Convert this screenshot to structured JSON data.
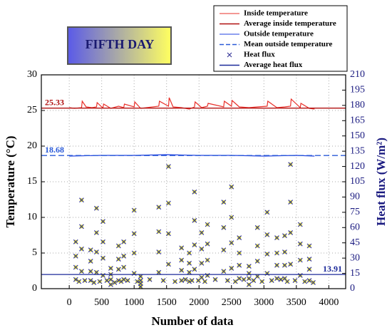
{
  "chart_data": {
    "type": "line",
    "annotation": "FIFTH DAY",
    "x_label": "Number of data",
    "y_label": "Temperature (°C)",
    "y2_label": "Heat flux (W/m²)",
    "xlim": [
      -430,
      4260
    ],
    "xticks": [
      0,
      500,
      1000,
      1500,
      2000,
      2500,
      3000,
      3500,
      4000
    ],
    "ylim": [
      0,
      30
    ],
    "yticks": [
      0,
      5,
      10,
      15,
      20,
      25,
      30
    ],
    "y2lim": [
      0,
      210
    ],
    "y2ticks": [
      0,
      15,
      30,
      45,
      60,
      75,
      90,
      105,
      120,
      135,
      150,
      165,
      180,
      195,
      210
    ],
    "grid": true,
    "legend": "top-right",
    "series": [
      {
        "name": "Inside temperature",
        "color": "#e8302a",
        "style": "line",
        "x": [
          0,
          80,
          190,
          200,
          260,
          350,
          420,
          430,
          500,
          520,
          530,
          640,
          760,
          840,
          850,
          1000,
          1010,
          1100,
          1380,
          1390,
          1530,
          1540,
          1600,
          1730,
          1850,
          1930,
          1940,
          2040,
          2130,
          2140,
          2380,
          2390,
          2500,
          2510,
          2620,
          2770,
          2900,
          3050,
          3060,
          3200,
          3320,
          3410,
          3420,
          3560,
          3570,
          3700,
          3780
        ],
        "values": [
          25.4,
          25.3,
          25.4,
          26.3,
          25.5,
          25.4,
          25.5,
          26.1,
          25.5,
          25.4,
          25.9,
          25.3,
          25.6,
          25.4,
          25.9,
          25.5,
          26.2,
          25.3,
          25.6,
          26.3,
          25.6,
          26.8,
          25.5,
          25.4,
          25.2,
          25.5,
          26.2,
          25.4,
          25.6,
          26.0,
          25.5,
          26.3,
          25.6,
          26.4,
          25.5,
          25.4,
          25.5,
          25.6,
          26.3,
          25.4,
          25.5,
          25.6,
          26.6,
          25.4,
          26.0,
          25.3,
          25.2
        ]
      },
      {
        "name": "Average inside temperature",
        "color": "#b01010",
        "style": "hline",
        "value": 25.33
      },
      {
        "name": "Outside temperature",
        "color": "#2040e0",
        "style": "line",
        "x": [
          0,
          500,
          1000,
          1500,
          2000,
          2500,
          3000,
          3500,
          3780
        ],
        "values": [
          18.6,
          18.7,
          18.7,
          18.8,
          18.7,
          18.7,
          18.6,
          18.7,
          18.6
        ]
      },
      {
        "name": "Mean outside temperature",
        "color": "#2a5ad8",
        "style": "dashed-hline",
        "value": 18.68
      },
      {
        "name": "Heat flux",
        "color": "#3a3a9a",
        "marker_fill": "#f0f000",
        "style": "marker",
        "axis": "y2",
        "x": [
          100,
          100,
          100,
          100,
          150,
          190,
          190,
          190,
          190,
          240,
          330,
          330,
          330,
          330,
          380,
          420,
          420,
          420,
          420,
          470,
          520,
          520,
          520,
          520,
          580,
          640,
          640,
          640,
          640,
          700,
          760,
          760,
          760,
          760,
          800,
          840,
          840,
          840,
          840,
          900,
          1000,
          1000,
          1000,
          1000,
          1050,
          1100,
          1100,
          1100,
          1100,
          1240,
          1380,
          1380,
          1380,
          1380,
          1450,
          1530,
          1530,
          1530,
          1530,
          1630,
          1730,
          1730,
          1730,
          1730,
          1790,
          1850,
          1850,
          1850,
          1850,
          1890,
          1930,
          1930,
          1930,
          1930,
          1990,
          2040,
          2040,
          2040,
          2040,
          2090,
          2130,
          2130,
          2130,
          2130,
          2250,
          2380,
          2380,
          2380,
          2380,
          2440,
          2500,
          2500,
          2500,
          2500,
          2560,
          2620,
          2620,
          2620,
          2620,
          2690,
          2770,
          2770,
          2770,
          2770,
          2840,
          2900,
          2900,
          2900,
          2900,
          2970,
          3050,
          3050,
          3050,
          3050,
          3120,
          3200,
          3200,
          3200,
          3200,
          3260,
          3320,
          3320,
          3320,
          3320,
          3360,
          3410,
          3410,
          3410,
          3410,
          3480,
          3560,
          3560,
          3560,
          3560,
          3630,
          3700,
          3700,
          3700,
          3700,
          3760
        ],
        "values": [
          46,
          32,
          21,
          9,
          7,
          87,
          61,
          39,
          17,
          8,
          38,
          27,
          17,
          8,
          6,
          79,
          55,
          36,
          16,
          7,
          66,
          46,
          30,
          13,
          8,
          20,
          14,
          9,
          4,
          6,
          42,
          29,
          19,
          8,
          7,
          46,
          32,
          21,
          9,
          8,
          77,
          54,
          35,
          15,
          7,
          12,
          8,
          5,
          2,
          9,
          80,
          56,
          36,
          16,
          8,
          120,
          84,
          54,
          24,
          7,
          40,
          28,
          18,
          8,
          9,
          35,
          25,
          16,
          7,
          8,
          95,
          67,
          43,
          19,
          8,
          55,
          39,
          25,
          11,
          7,
          63,
          44,
          28,
          13,
          9,
          85,
          60,
          38,
          17,
          8,
          100,
          70,
          45,
          20,
          7,
          50,
          35,
          23,
          10,
          9,
          22,
          15,
          10,
          4,
          8,
          60,
          42,
          27,
          12,
          7,
          75,
          53,
          34,
          15,
          8,
          50,
          35,
          23,
          10,
          9,
          52,
          36,
          23,
          10,
          7,
          122,
          85,
          55,
          24,
          8,
          63,
          44,
          28,
          13,
          7,
          42,
          29,
          19,
          8,
          6
        ]
      },
      {
        "name": "Average heat flux",
        "color": "#1c2a9a",
        "style": "hline",
        "axis": "y2",
        "value": 13.91
      }
    ]
  }
}
